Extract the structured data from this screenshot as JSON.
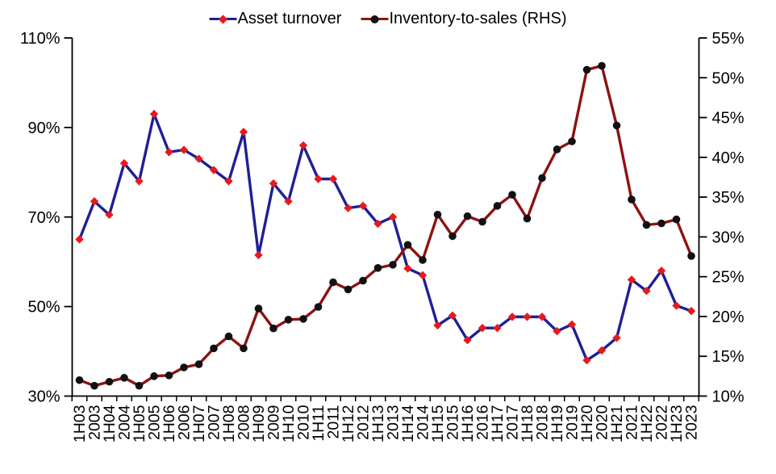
{
  "chart_data": {
    "type": "line",
    "title": "",
    "grid": false,
    "legend_position": "top-center",
    "categories": [
      "1H03",
      "2003",
      "1H04",
      "2004",
      "1H05",
      "2005",
      "1H06",
      "2006",
      "1H07",
      "2007",
      "1H08",
      "2008",
      "1H09",
      "2009",
      "1H10",
      "2010",
      "1H11",
      "2011",
      "1H12",
      "2012",
      "1H13",
      "2013",
      "1H14",
      "2014",
      "1H15",
      "2015",
      "1H16",
      "2016",
      "1H17",
      "2017",
      "1H18",
      "2018",
      "1H19",
      "2019",
      "1H20",
      "2020",
      "1H21",
      "2021",
      "1H22",
      "2022",
      "1H23",
      "2023"
    ],
    "series": [
      {
        "name": "Asset turnover",
        "axis": "left",
        "marker": "diamond",
        "color": "#1f1f96",
        "marker_color": "#e8191c",
        "values": [
          65,
          73.5,
          70.5,
          82,
          78,
          93,
          84.5,
          85,
          83,
          80.5,
          78,
          89,
          61.5,
          77.5,
          73.5,
          86,
          78.5,
          78.5,
          72,
          72.5,
          68.5,
          70,
          58.5,
          57,
          45.8,
          48,
          42.5,
          45.2,
          45.2,
          47.7,
          47.7,
          47.7,
          44.5,
          46,
          38,
          40.2,
          43,
          56,
          53.5,
          58,
          50.2,
          49
        ]
      },
      {
        "name": "Inventory-to-sales (RHS)",
        "axis": "right",
        "marker": "circle",
        "color": "#8d1212",
        "marker_color": "#111111",
        "values": [
          12,
          11.3,
          11.8,
          12.3,
          11.3,
          12.5,
          12.6,
          13.6,
          14,
          16,
          17.5,
          16,
          21,
          18.5,
          19.6,
          19.7,
          21.2,
          24.3,
          23.4,
          24.5,
          26.1,
          26.5,
          29,
          27.1,
          32.8,
          30.1,
          32.6,
          31.9,
          33.9,
          35.3,
          32.3,
          37.4,
          41,
          42,
          51,
          51.5,
          44,
          34.7,
          31.5,
          31.7,
          32.2,
          27.6
        ]
      }
    ],
    "left_axis": {
      "min": 30,
      "max": 110,
      "tick_values": [
        110,
        90,
        70,
        50,
        30
      ],
      "tick_labels": [
        "110%",
        "90%",
        "70%",
        "50%",
        "30%"
      ]
    },
    "right_axis": {
      "min": 10,
      "max": 55,
      "tick_values": [
        55,
        50,
        45,
        40,
        35,
        30,
        25,
        20,
        15,
        10
      ],
      "tick_labels": [
        "55%",
        "50%",
        "45%",
        "40%",
        "35%",
        "30%",
        "25%",
        "20%",
        "15%",
        "10%"
      ]
    },
    "axis_color": "#000000"
  }
}
